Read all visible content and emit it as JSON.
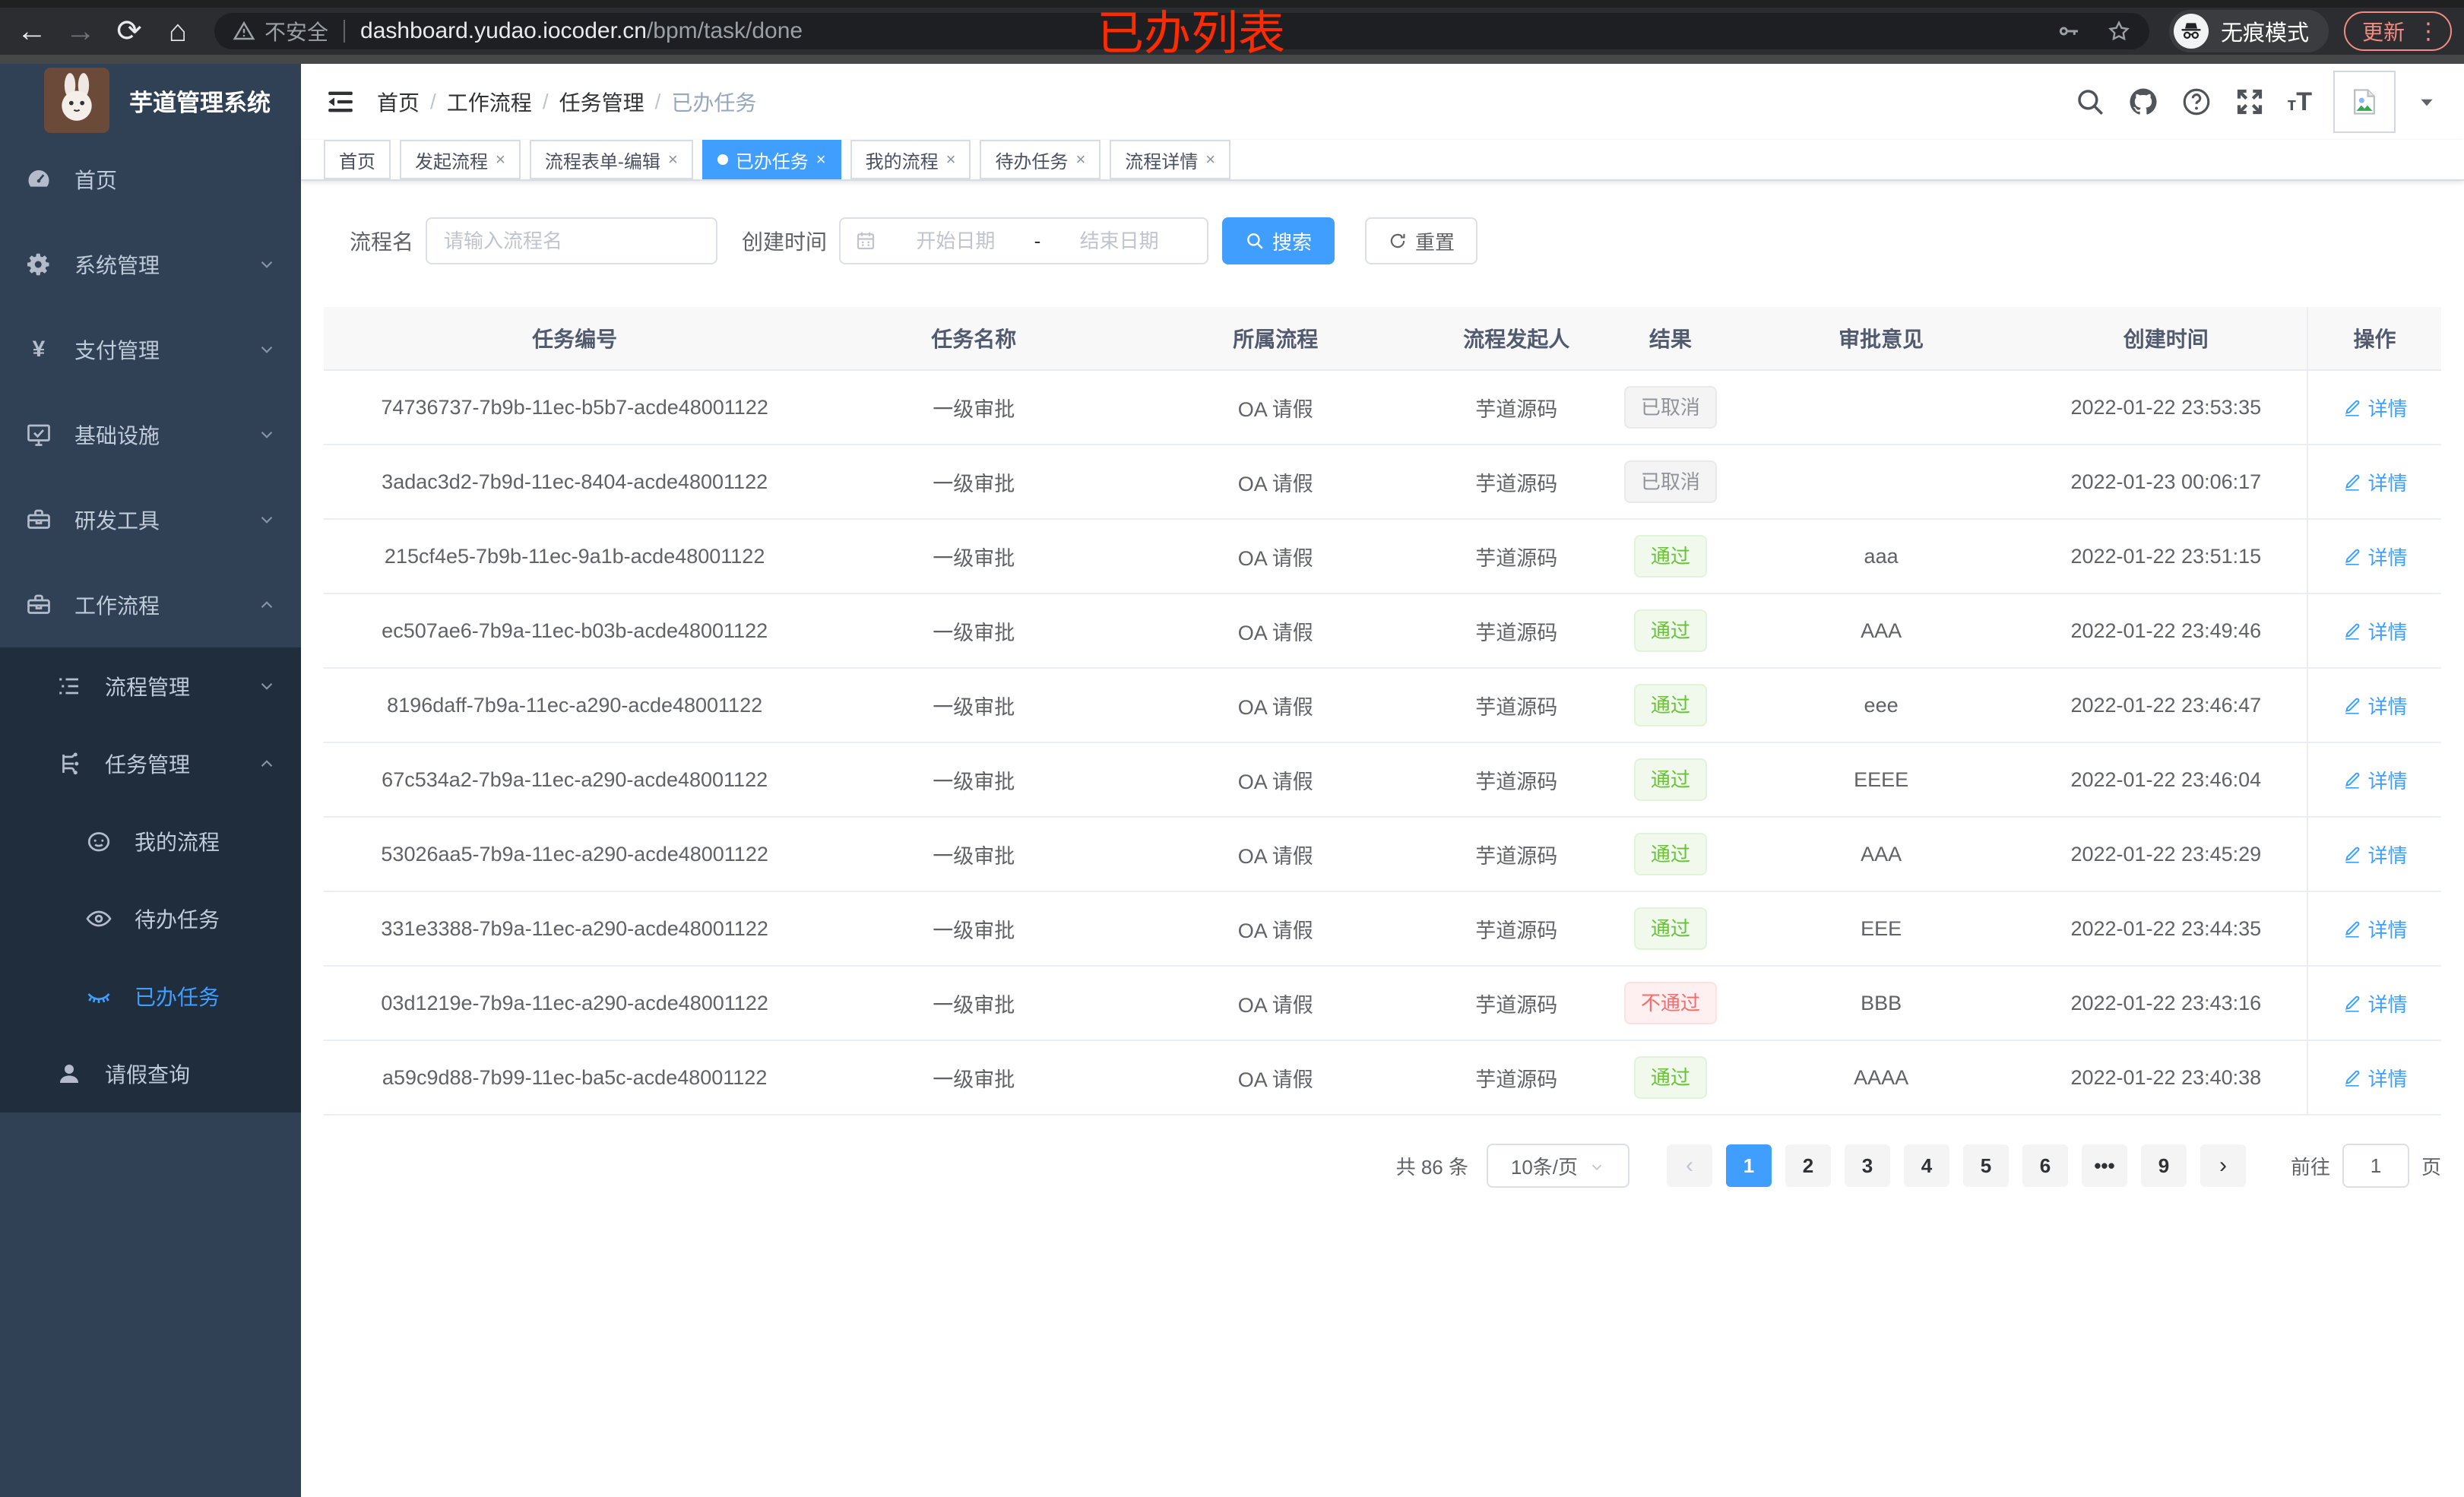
{
  "colors": {
    "accent": "#409eff",
    "success": "#67c23a",
    "danger": "#f56c6c",
    "info": "#909399",
    "annotation": "#fe2b00"
  },
  "chrome": {
    "security_label": "不安全",
    "url_host": "dashboard.yudao.iocoder.cn",
    "url_path": "/bpm/task/done",
    "incognito_label": "无痕模式",
    "update_label": "更新"
  },
  "annotation": "已办列表",
  "sidebar": {
    "title": "芋道管理系统",
    "items": [
      {
        "key": "home",
        "label": "首页",
        "level": 0,
        "icon": "dashboard"
      },
      {
        "key": "system",
        "label": "系统管理",
        "level": 0,
        "icon": "gear",
        "chevron": "down"
      },
      {
        "key": "payment",
        "label": "支付管理",
        "level": 0,
        "icon": "yen",
        "chevron": "down"
      },
      {
        "key": "infra",
        "label": "基础设施",
        "level": 0,
        "icon": "monitor",
        "chevron": "down"
      },
      {
        "key": "devtools",
        "label": "研发工具",
        "level": 0,
        "icon": "toolbox",
        "chevron": "down"
      },
      {
        "key": "workflow",
        "label": "工作流程",
        "level": 0,
        "icon": "toolbox",
        "chevron": "up"
      },
      {
        "key": "process-mgmt",
        "label": "流程管理",
        "level": 1,
        "icon": "tree",
        "chevron": "down",
        "dark": true
      },
      {
        "key": "task-mgmt",
        "label": "任务管理",
        "level": 1,
        "icon": "org",
        "chevron": "up",
        "dark": true
      },
      {
        "key": "my-process",
        "label": "我的流程",
        "level": 2,
        "icon": "face",
        "dark": true
      },
      {
        "key": "todo-task",
        "label": "待办任务",
        "level": 2,
        "icon": "eye",
        "dark": true
      },
      {
        "key": "done-task",
        "label": "已办任务",
        "level": 2,
        "icon": "eye-closed",
        "dark": true,
        "active": true
      },
      {
        "key": "leave-query",
        "label": "请假查询",
        "level": 1,
        "icon": "user",
        "dark": true
      }
    ]
  },
  "breadcrumb": [
    "首页",
    "工作流程",
    "任务管理",
    "已办任务"
  ],
  "tabs": [
    {
      "key": "home",
      "label": "首页",
      "closable": false,
      "active": false
    },
    {
      "key": "start-process",
      "label": "发起流程",
      "closable": true,
      "active": false
    },
    {
      "key": "form-edit",
      "label": "流程表单-编辑",
      "closable": true,
      "active": false
    },
    {
      "key": "done-task",
      "label": "已办任务",
      "closable": true,
      "active": true
    },
    {
      "key": "my-process",
      "label": "我的流程",
      "closable": true,
      "active": false
    },
    {
      "key": "todo-task",
      "label": "待办任务",
      "closable": true,
      "active": false
    },
    {
      "key": "process-detail",
      "label": "流程详情",
      "closable": true,
      "active": false
    }
  ],
  "filters": {
    "name_label": "流程名",
    "name_placeholder": "请输入流程名",
    "time_label": "创建时间",
    "start_placeholder": "开始日期",
    "range_separator": "-",
    "end_placeholder": "结束日期",
    "search_label": "搜索",
    "reset_label": "重置"
  },
  "table": {
    "columns": [
      "任务编号",
      "任务名称",
      "所属流程",
      "流程发起人",
      "结果",
      "审批意见",
      "创建时间",
      "操作"
    ],
    "action_label": "详情",
    "rows": [
      {
        "id": "74736737-7b9b-11ec-b5b7-acde48001122",
        "name": "一级审批",
        "process": "OA 请假",
        "starter": "芋道源码",
        "result": "已取消",
        "result_type": "info",
        "comment": "",
        "created": "2022-01-22 23:53:35"
      },
      {
        "id": "3adac3d2-7b9d-11ec-8404-acde48001122",
        "name": "一级审批",
        "process": "OA 请假",
        "starter": "芋道源码",
        "result": "已取消",
        "result_type": "info",
        "comment": "",
        "created": "2022-01-23 00:06:17"
      },
      {
        "id": "215cf4e5-7b9b-11ec-9a1b-acde48001122",
        "name": "一级审批",
        "process": "OA 请假",
        "starter": "芋道源码",
        "result": "通过",
        "result_type": "success",
        "comment": "aaa",
        "created": "2022-01-22 23:51:15"
      },
      {
        "id": "ec507ae6-7b9a-11ec-b03b-acde48001122",
        "name": "一级审批",
        "process": "OA 请假",
        "starter": "芋道源码",
        "result": "通过",
        "result_type": "success",
        "comment": "AAA",
        "created": "2022-01-22 23:49:46"
      },
      {
        "id": "8196daff-7b9a-11ec-a290-acde48001122",
        "name": "一级审批",
        "process": "OA 请假",
        "starter": "芋道源码",
        "result": "通过",
        "result_type": "success",
        "comment": "eee",
        "created": "2022-01-22 23:46:47"
      },
      {
        "id": "67c534a2-7b9a-11ec-a290-acde48001122",
        "name": "一级审批",
        "process": "OA 请假",
        "starter": "芋道源码",
        "result": "通过",
        "result_type": "success",
        "comment": "EEEE",
        "created": "2022-01-22 23:46:04"
      },
      {
        "id": "53026aa5-7b9a-11ec-a290-acde48001122",
        "name": "一级审批",
        "process": "OA 请假",
        "starter": "芋道源码",
        "result": "通过",
        "result_type": "success",
        "comment": "AAA",
        "created": "2022-01-22 23:45:29"
      },
      {
        "id": "331e3388-7b9a-11ec-a290-acde48001122",
        "name": "一级审批",
        "process": "OA 请假",
        "starter": "芋道源码",
        "result": "通过",
        "result_type": "success",
        "comment": "EEE",
        "created": "2022-01-22 23:44:35"
      },
      {
        "id": "03d1219e-7b9a-11ec-a290-acde48001122",
        "name": "一级审批",
        "process": "OA 请假",
        "starter": "芋道源码",
        "result": "不通过",
        "result_type": "danger",
        "comment": "BBB",
        "created": "2022-01-22 23:43:16"
      },
      {
        "id": "a59c9d88-7b99-11ec-ba5c-acde48001122",
        "name": "一级审批",
        "process": "OA 请假",
        "starter": "芋道源码",
        "result": "通过",
        "result_type": "success",
        "comment": "AAAA",
        "created": "2022-01-22 23:40:38"
      }
    ]
  },
  "pagination": {
    "total": "共 86 条",
    "page_size": "10条/页",
    "pages": [
      "1",
      "2",
      "3",
      "4",
      "5",
      "6",
      "•••",
      "9"
    ],
    "active_page": "1",
    "prev": "‹",
    "next": "›",
    "goto_label": "前往",
    "goto_value": "1",
    "page_label": "页"
  }
}
